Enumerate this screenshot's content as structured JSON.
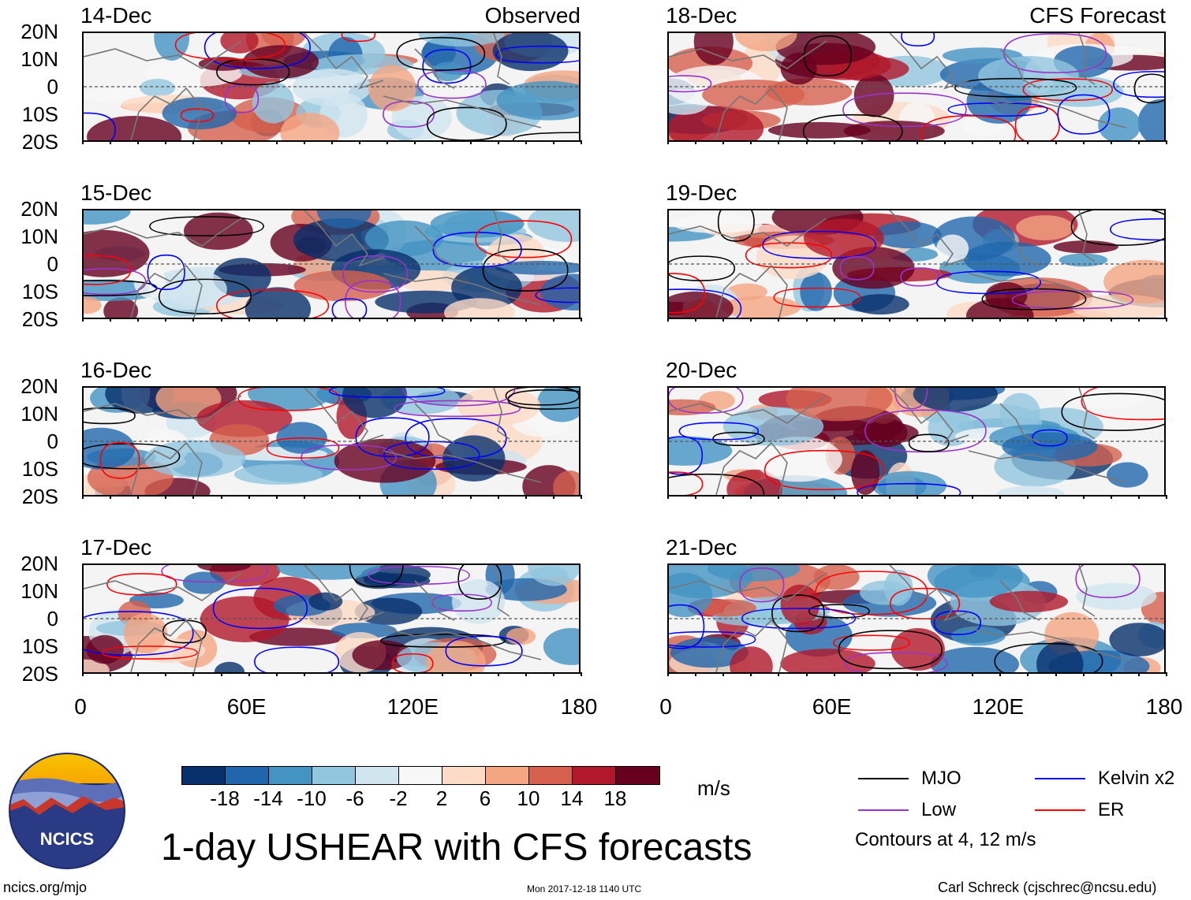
{
  "title": "1-day USHEAR with CFS forecasts",
  "panel_titles": {
    "observed": "Observed",
    "forecast": "CFS Forecast"
  },
  "left_dates": [
    "14-Dec",
    "15-Dec",
    "16-Dec",
    "17-Dec"
  ],
  "right_dates": [
    "18-Dec",
    "19-Dec",
    "20-Dec",
    "21-Dec"
  ],
  "lat_labels": [
    "20N",
    "10N",
    "0",
    "10S",
    "20S"
  ],
  "lon_labels": [
    "0",
    "60E",
    "120E",
    "180"
  ],
  "colorbar": {
    "labels": [
      "-18",
      "-14",
      "-10",
      "-6",
      "-2",
      "2",
      "6",
      "10",
      "14",
      "18"
    ],
    "colors": [
      "#08306b",
      "#2166ac",
      "#4393c3",
      "#92c5de",
      "#d1e5f0",
      "#f7f7f7",
      "#fddbc7",
      "#f4a582",
      "#d6604d",
      "#b2182b",
      "#67001f"
    ],
    "units": "m/s"
  },
  "legend": {
    "items": [
      {
        "label": "MJO",
        "color": "#000000"
      },
      {
        "label": "Kelvin x2",
        "color": "#0000ff"
      },
      {
        "label": "Low",
        "color": "#9933cc"
      },
      {
        "label": "ER",
        "color": "#ff0000"
      }
    ],
    "note": "Contours at 4, 12 m/s"
  },
  "footer": {
    "left": "ncics.org/mjo",
    "center": "Mon 2017-12-18 1140 UTC",
    "right": "Carl Schreck (cjschrec@ncsu.edu)"
  },
  "logo_text": "NCICS"
}
